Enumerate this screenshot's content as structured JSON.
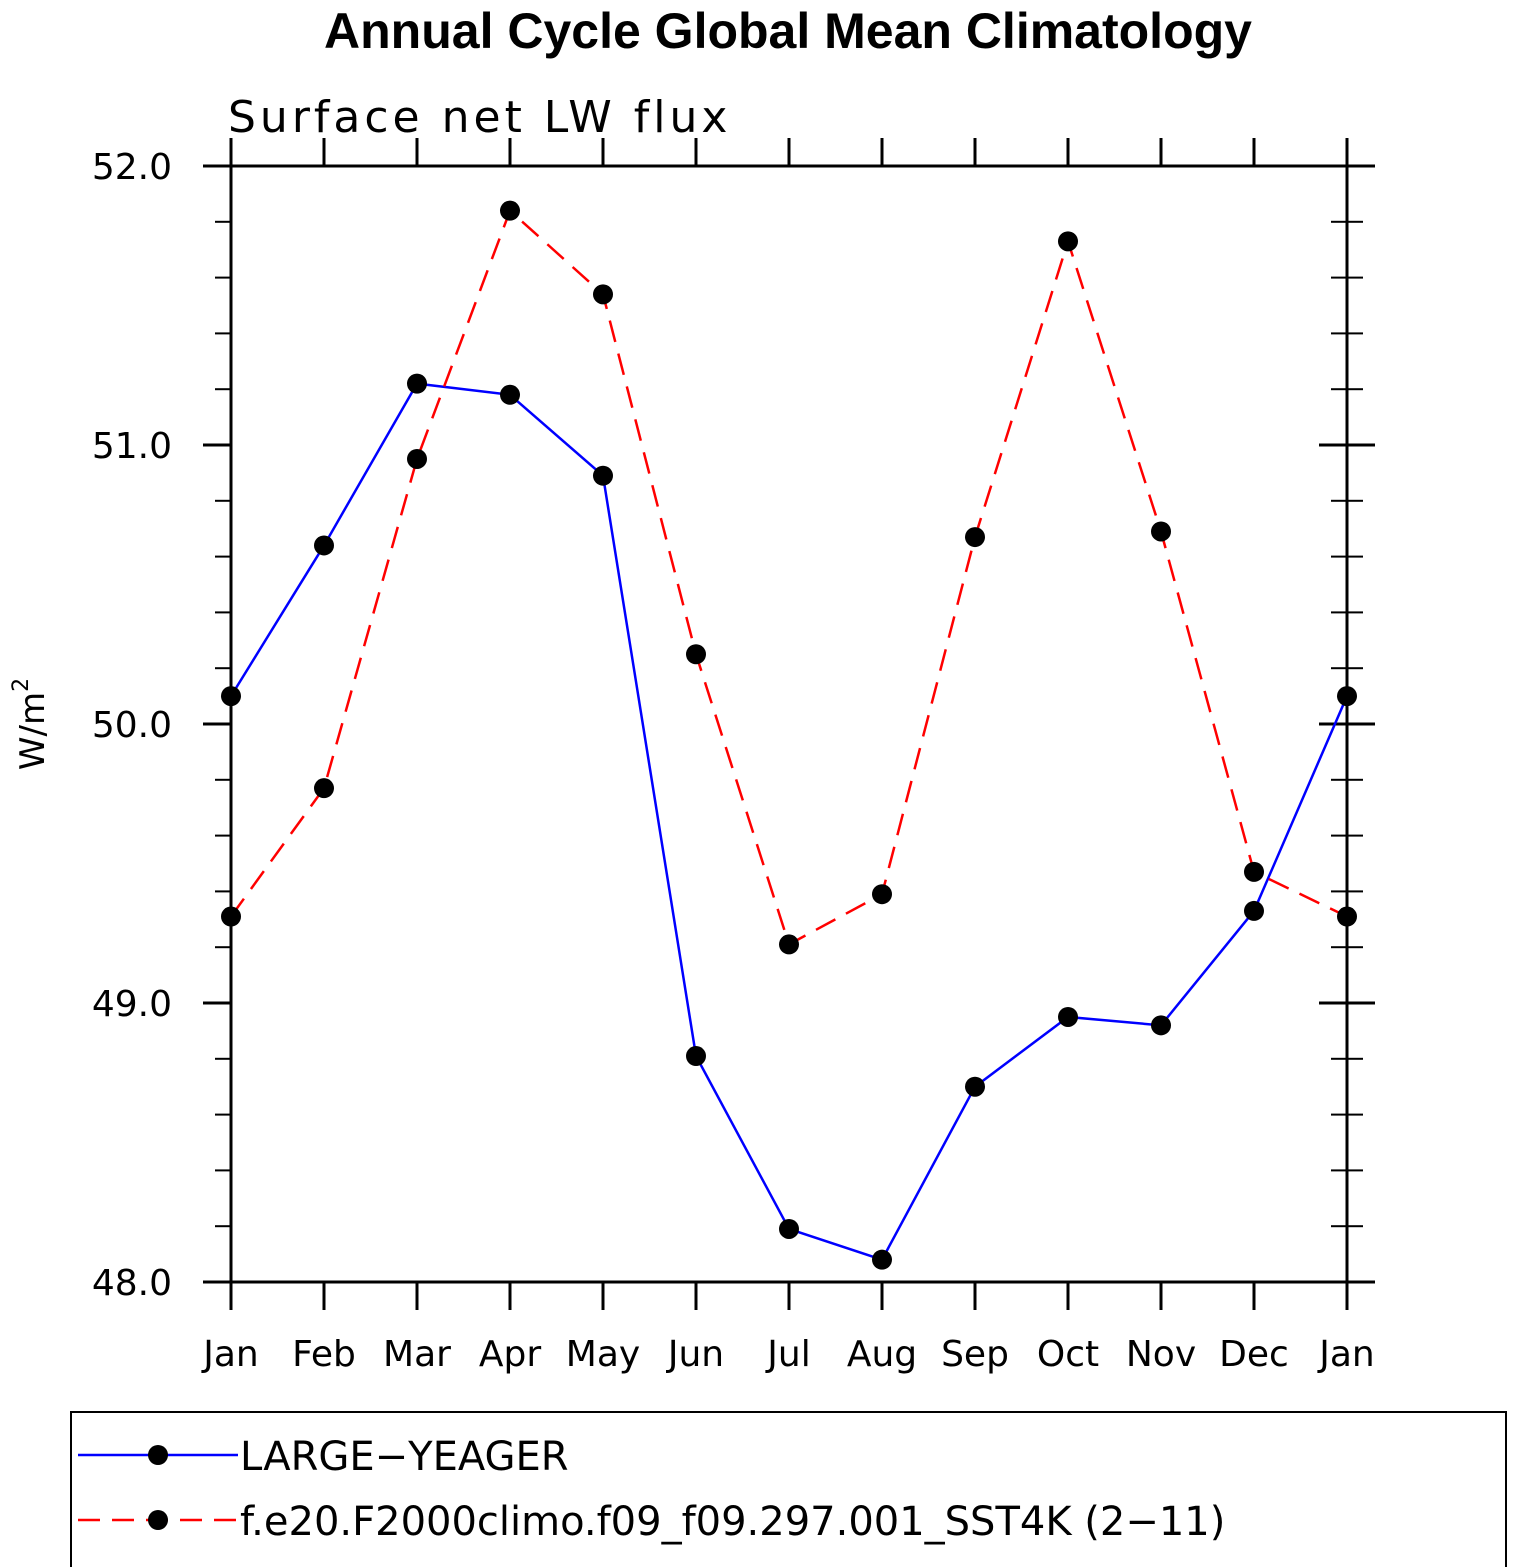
{
  "chart_data": {
    "type": "line",
    "title": "Annual Cycle Global Mean Climatology",
    "subtitle": "Surface net LW flux",
    "ylabel": "W/m",
    "ylabel_superscript": "2",
    "ylim": [
      48.0,
      52.0
    ],
    "yticks": [
      "48.0",
      "49.0",
      "50.0",
      "51.0",
      "52.0"
    ],
    "categories": [
      "Jan",
      "Feb",
      "Mar",
      "Apr",
      "May",
      "Jun",
      "Jul",
      "Aug",
      "Sep",
      "Oct",
      "Nov",
      "Dec",
      "Jan"
    ],
    "legend_position": "bottom",
    "series": [
      {
        "name": "LARGE−YEAGER",
        "color": "#0000ff",
        "dash": "solid",
        "values": [
          50.1,
          50.64,
          51.22,
          51.18,
          50.89,
          48.81,
          48.19,
          48.08,
          48.7,
          48.95,
          48.92,
          49.33,
          50.1
        ]
      },
      {
        "name": "f.e20.F2000climo.f09_f09.297.001_SST4K (2−11)",
        "color": "#ff0000",
        "dash": "dashed",
        "values": [
          49.31,
          49.77,
          50.95,
          51.84,
          51.54,
          50.25,
          49.21,
          49.39,
          50.67,
          51.73,
          50.69,
          49.47,
          49.31
        ]
      }
    ]
  }
}
